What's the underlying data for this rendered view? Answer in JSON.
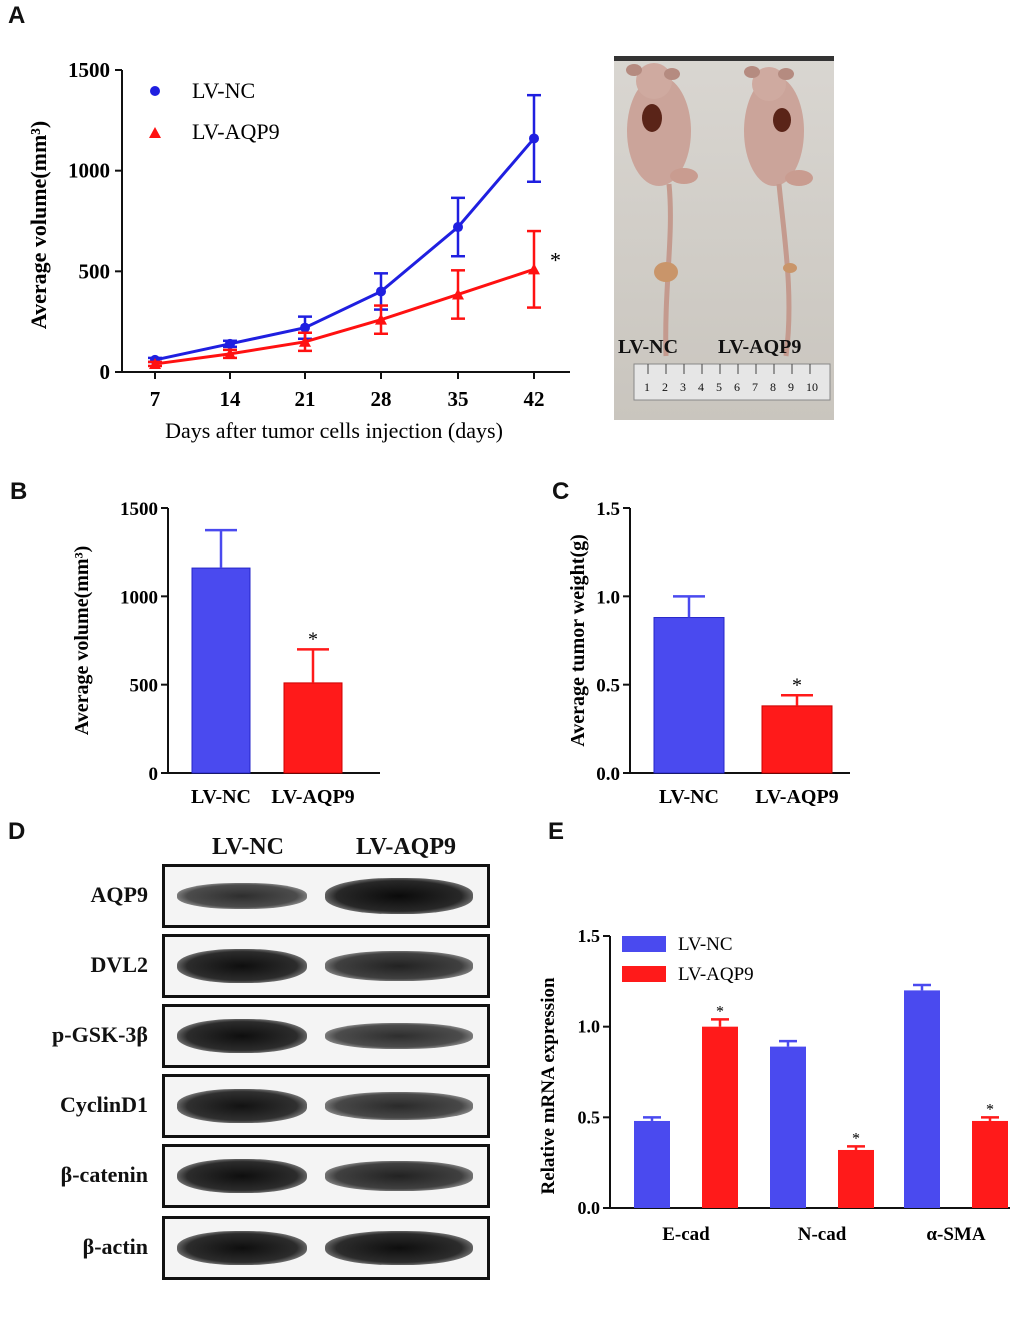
{
  "panels": {
    "a": "A",
    "b": "B",
    "c": "C",
    "d": "D",
    "e": "E"
  },
  "colors": {
    "nc": "#1f1fe0",
    "aqp9": "#ff1111",
    "nc_bar": "#4a4aef",
    "aqp9_bar": "#ff1a1a"
  },
  "chart_data": [
    {
      "id": "A",
      "type": "line",
      "title": "",
      "xlabel": "Days after tumor cells injection (days)",
      "ylabel": "Average volume(mm³)",
      "x": [
        7,
        14,
        21,
        28,
        35,
        42
      ],
      "ylim": [
        0,
        1500
      ],
      "yticks": [
        0,
        500,
        1000,
        1500
      ],
      "series": [
        {
          "name": "LV-NC",
          "marker": "circle",
          "values": [
            60,
            140,
            220,
            400,
            720,
            1160
          ],
          "errors": [
            10,
            15,
            55,
            90,
            145,
            215
          ]
        },
        {
          "name": "LV-AQP9",
          "marker": "triangle",
          "values": [
            40,
            90,
            150,
            260,
            385,
            510
          ],
          "errors": [
            10,
            20,
            45,
            70,
            120,
            190
          ]
        }
      ],
      "annotations": [
        "*"
      ]
    },
    {
      "id": "B",
      "type": "bar",
      "ylabel": "Average volume(mm³)",
      "categories": [
        "LV-NC",
        "LV-AQP9"
      ],
      "values": [
        1160,
        510
      ],
      "errors": [
        215,
        190
      ],
      "ylim": [
        0,
        1500
      ],
      "yticks": [
        0,
        500,
        1000,
        1500
      ],
      "annotations": [
        "",
        "*"
      ]
    },
    {
      "id": "C",
      "type": "bar",
      "ylabel": "Average tumor weight(g)",
      "categories": [
        "LV-NC",
        "LV-AQP9"
      ],
      "values": [
        0.88,
        0.38
      ],
      "errors": [
        0.12,
        0.06
      ],
      "ylim": [
        0,
        1.5
      ],
      "yticks": [
        "0.0",
        "0.5",
        "1.0",
        "1.5"
      ],
      "annotations": [
        "",
        "*"
      ]
    },
    {
      "id": "E",
      "type": "bar",
      "ylabel": "Relative mRNA expression",
      "categories": [
        "E-cad",
        "N-cad",
        "α-SMA"
      ],
      "series": [
        {
          "name": "LV-NC",
          "values": [
            0.48,
            0.89,
            1.2
          ],
          "errors": [
            0.02,
            0.03,
            0.03
          ]
        },
        {
          "name": "LV-AQP9",
          "values": [
            1.0,
            0.32,
            0.48
          ],
          "errors": [
            0.04,
            0.02,
            0.02
          ]
        }
      ],
      "ylim": [
        0,
        1.5
      ],
      "yticks": [
        "0.0",
        "0.5",
        "1.0",
        "1.5"
      ],
      "annotations": [
        "*",
        "*",
        "*"
      ]
    }
  ],
  "photo": {
    "labels": [
      "LV-NC",
      "LV-AQP9"
    ],
    "ruler": [
      "1",
      "2",
      "3",
      "4",
      "5",
      "6",
      "7",
      "8",
      "9",
      "10"
    ]
  },
  "western": {
    "columns": [
      "LV-NC",
      "LV-AQP9"
    ],
    "rows": [
      "AQP9",
      "DVL2",
      "p-GSK-3β",
      "CyclinD1",
      "β-catenin",
      "β-actin"
    ]
  }
}
